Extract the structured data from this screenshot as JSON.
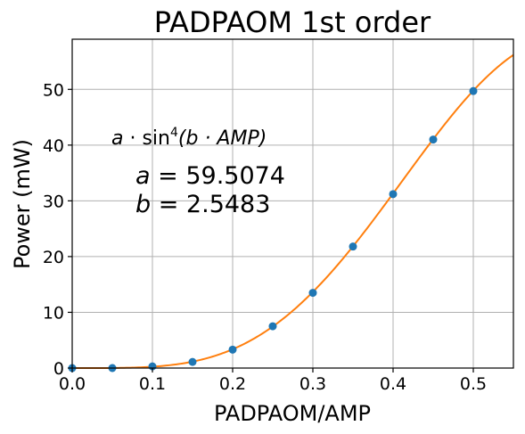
{
  "chart_data": {
    "type": "scatter",
    "title": "PADPAOM 1st order",
    "xlabel": "PADPAOM/AMP",
    "ylabel": "Power (mW)",
    "xlim": [
      0,
      0.55
    ],
    "ylim": [
      0,
      59
    ],
    "xticks": [
      0.0,
      0.1,
      0.2,
      0.3,
      0.4,
      0.5
    ],
    "xtick_labels": [
      "0.0",
      "0.1",
      "0.2",
      "0.3",
      "0.4",
      "0.5"
    ],
    "yticks": [
      0,
      10,
      20,
      30,
      40,
      50
    ],
    "ytick_labels": [
      "0",
      "10",
      "20",
      "30",
      "40",
      "50"
    ],
    "grid": true,
    "series": [
      {
        "kind": "scatter",
        "color": "#1f77b4",
        "x": [
          0.0,
          0.05,
          0.1,
          0.15,
          0.2,
          0.25,
          0.3,
          0.35,
          0.4,
          0.45,
          0.5
        ],
        "y": [
          0.0,
          0.0,
          0.3,
          1.1,
          3.3,
          7.5,
          13.5,
          21.8,
          31.2,
          41.0,
          49.7
        ]
      },
      {
        "kind": "line",
        "color": "#ff7f0e",
        "fit": {
          "a": 59.5074,
          "b": 2.5483
        }
      }
    ],
    "annotations": {
      "formula": {
        "a": "a",
        "dot1": " · sin",
        "exp": "4",
        "arg": "(b · AMP)"
      },
      "param_a": {
        "sym": "a",
        "value": " = 59.5074"
      },
      "param_b": {
        "sym": "b",
        "value": " = 2.5483"
      }
    }
  }
}
